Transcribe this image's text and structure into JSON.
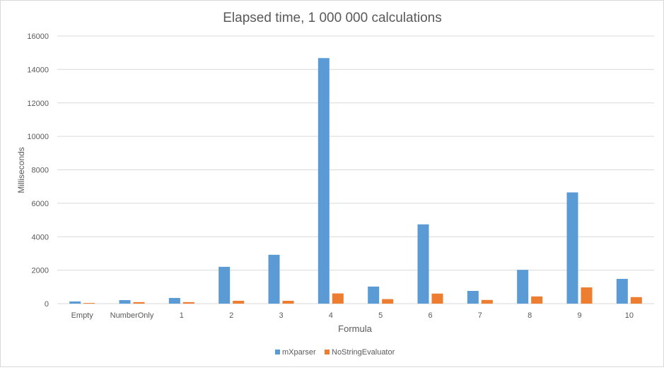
{
  "chart_data": {
    "type": "bar",
    "title": "Elapsed time, 1 000 000 calculations",
    "xlabel": "Formula",
    "ylabel": "Milliseconds",
    "categories": [
      "Empty",
      "NumberOnly",
      "1",
      "2",
      "3",
      "4",
      "5",
      "6",
      "7",
      "8",
      "9",
      "10"
    ],
    "series": [
      {
        "name": "mXparser",
        "color": "#5b9bd5",
        "values": [
          130,
          210,
          340,
          2200,
          2920,
          14680,
          1020,
          4740,
          760,
          2020,
          6650,
          1480
        ]
      },
      {
        "name": "NoStringEvaluator",
        "color": "#ed7d31",
        "values": [
          40,
          90,
          90,
          170,
          170,
          610,
          270,
          600,
          220,
          430,
          970,
          390
        ]
      }
    ],
    "ylim": [
      0,
      16000
    ],
    "yticks": [
      0,
      2000,
      4000,
      6000,
      8000,
      10000,
      12000,
      14000,
      16000
    ],
    "grid": true,
    "legend": "bottom"
  }
}
